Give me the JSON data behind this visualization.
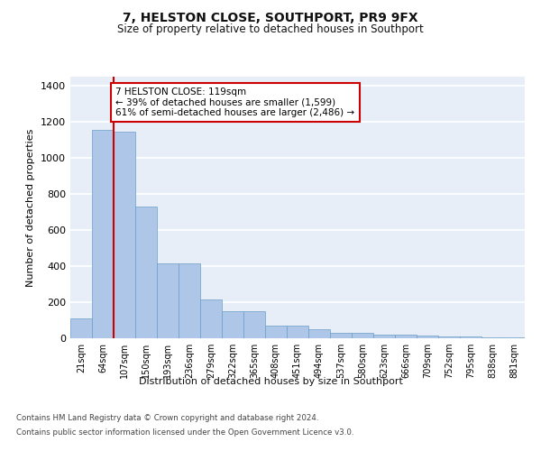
{
  "title": "7, HELSTON CLOSE, SOUTHPORT, PR9 9FX",
  "subtitle": "Size of property relative to detached houses in Southport",
  "xlabel": "Distribution of detached houses by size in Southport",
  "ylabel": "Number of detached properties",
  "bar_color": "#aec6e8",
  "bar_edge_color": "#6a9fc8",
  "background_color": "#e8eef7",
  "grid_color": "#ffffff",
  "categories": [
    "21sqm",
    "64sqm",
    "107sqm",
    "150sqm",
    "193sqm",
    "236sqm",
    "279sqm",
    "322sqm",
    "365sqm",
    "408sqm",
    "451sqm",
    "494sqm",
    "537sqm",
    "580sqm",
    "623sqm",
    "666sqm",
    "709sqm",
    "752sqm",
    "795sqm",
    "838sqm",
    "881sqm"
  ],
  "bar_values": [
    110,
    1155,
    1145,
    730,
    415,
    415,
    215,
    150,
    148,
    72,
    70,
    48,
    32,
    30,
    18,
    18,
    15,
    10,
    8,
    5,
    3
  ],
  "annotation_text": "7 HELSTON CLOSE: 119sqm\n← 39% of detached houses are smaller (1,599)\n61% of semi-detached houses are larger (2,486) →",
  "annotation_box_color": "#ffffff",
  "annotation_box_edge_color": "#cc0000",
  "vline_color": "#cc0000",
  "ylim": [
    0,
    1450
  ],
  "yticks": [
    0,
    200,
    400,
    600,
    800,
    1000,
    1200,
    1400
  ],
  "footer_line1": "Contains HM Land Registry data © Crown copyright and database right 2024.",
  "footer_line2": "Contains public sector information licensed under the Open Government Licence v3.0."
}
